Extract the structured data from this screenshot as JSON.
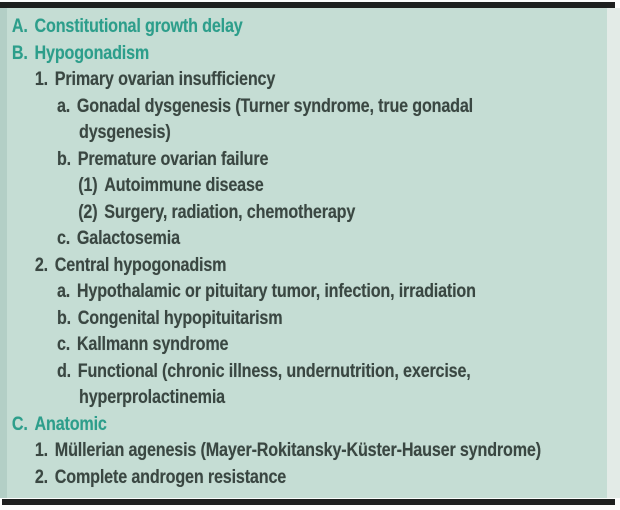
{
  "panel": {
    "background_color": "#c5ddd4",
    "header_color": "#2d9e8b",
    "text_color": "#3a4742",
    "rule_color": "#1d1f1e"
  },
  "outline": {
    "rows": [
      {
        "marker": "A.",
        "text": "Constitutional growth delay",
        "style": "header",
        "level": 0,
        "cont": false
      },
      {
        "marker": "B.",
        "text": "Hypogonadism",
        "style": "header",
        "level": 0,
        "cont": false
      },
      {
        "marker": "1.",
        "text": "Primary ovarian insufficiency",
        "style": "item",
        "level": 1,
        "cont": false
      },
      {
        "marker": "a.",
        "text": "Gonadal dysgenesis (Turner syndrome, true gonadal",
        "style": "item",
        "level": 2,
        "cont": false
      },
      {
        "marker": "",
        "text": "dysgenesis)",
        "style": "item",
        "level": 2,
        "cont": true
      },
      {
        "marker": "b.",
        "text": "Premature ovarian failure",
        "style": "item",
        "level": 2,
        "cont": false
      },
      {
        "marker": "(1)",
        "text": "Autoimmune disease",
        "style": "item",
        "level": 3,
        "cont": false
      },
      {
        "marker": "(2)",
        "text": "Surgery, radiation, chemotherapy",
        "style": "item",
        "level": 3,
        "cont": false
      },
      {
        "marker": "c.",
        "text": "Galactosemia",
        "style": "item",
        "level": 2,
        "cont": false
      },
      {
        "marker": "2.",
        "text": "Central hypogonadism",
        "style": "item",
        "level": 1,
        "cont": false
      },
      {
        "marker": "a.",
        "text": "Hypothalamic or pituitary tumor, infection, irradiation",
        "style": "item",
        "level": 2,
        "cont": false
      },
      {
        "marker": "b.",
        "text": "Congenital hypopituitarism",
        "style": "item",
        "level": 2,
        "cont": false
      },
      {
        "marker": "c.",
        "text": "Kallmann syndrome",
        "style": "item",
        "level": 2,
        "cont": false
      },
      {
        "marker": "d.",
        "text": "Functional (chronic illness, undernutrition, exercise,",
        "style": "item",
        "level": 2,
        "cont": false
      },
      {
        "marker": "",
        "text": "hyperprolactinemia",
        "style": "item",
        "level": 2,
        "cont": true
      },
      {
        "marker": "C.",
        "text": "Anatomic",
        "style": "header",
        "level": 0,
        "cont": false
      },
      {
        "marker": "1.",
        "text": "Müllerian agenesis (Mayer-Rokitansky-Küster-Hauser syndrome)",
        "style": "item",
        "level": 1,
        "cont": false
      },
      {
        "marker": "2.",
        "text": "Complete androgen resistance",
        "style": "item",
        "level": 1,
        "cont": false
      }
    ]
  }
}
